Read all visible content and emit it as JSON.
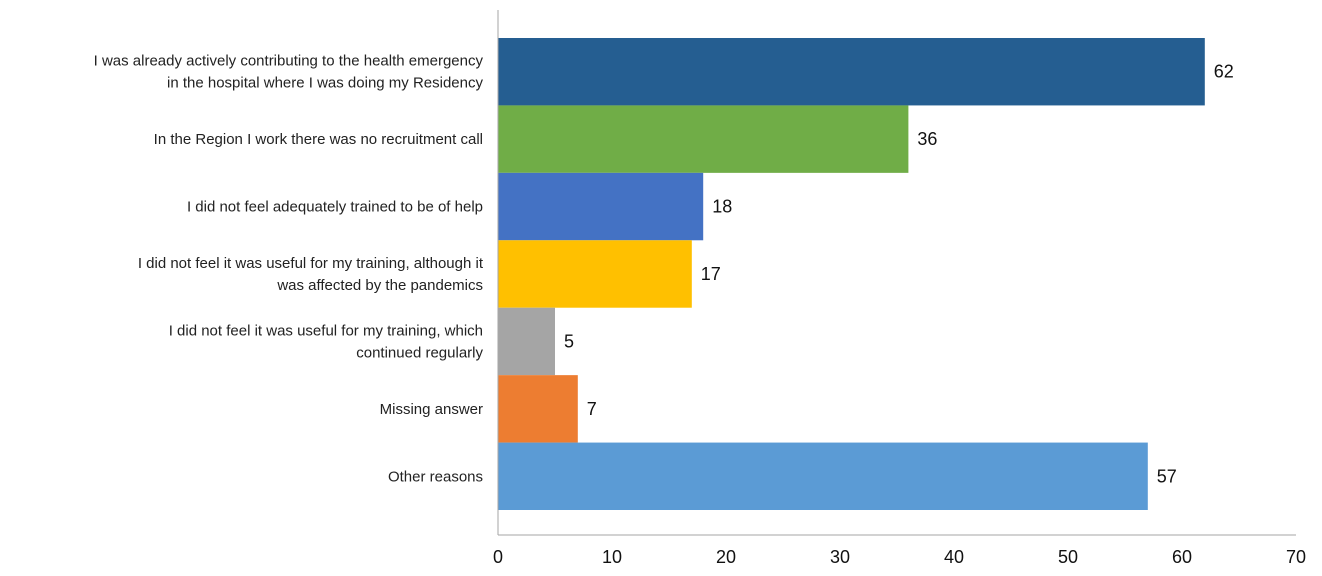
{
  "chart_data": {
    "type": "bar",
    "orientation": "horizontal",
    "title": "",
    "xlabel": "",
    "ylabel": "",
    "xlim": [
      0,
      70
    ],
    "x_ticks": [
      0,
      10,
      20,
      30,
      40,
      50,
      60,
      70
    ],
    "grid": false,
    "legend": "none",
    "categories": [
      [
        "I was already actively contributing to the health emergency",
        "in the hospital where I was doing my Residency"
      ],
      [
        "In the Region I work there was no recruitment call"
      ],
      [
        "I did not feel adequately trained to be of help"
      ],
      [
        "I did not feel it was useful for my training, although it",
        "was affected by the pandemics"
      ],
      [
        "I did not feel it was useful for my training, which",
        "continued regularly"
      ],
      [
        "Missing answer"
      ],
      [
        "Other reasons"
      ]
    ],
    "values": [
      62,
      36,
      18,
      17,
      5,
      7,
      57
    ],
    "colors": [
      "#255e91",
      "#70ad47",
      "#4472c4",
      "#ffc000",
      "#a5a5a5",
      "#ed7d31",
      "#5b9bd5"
    ]
  }
}
